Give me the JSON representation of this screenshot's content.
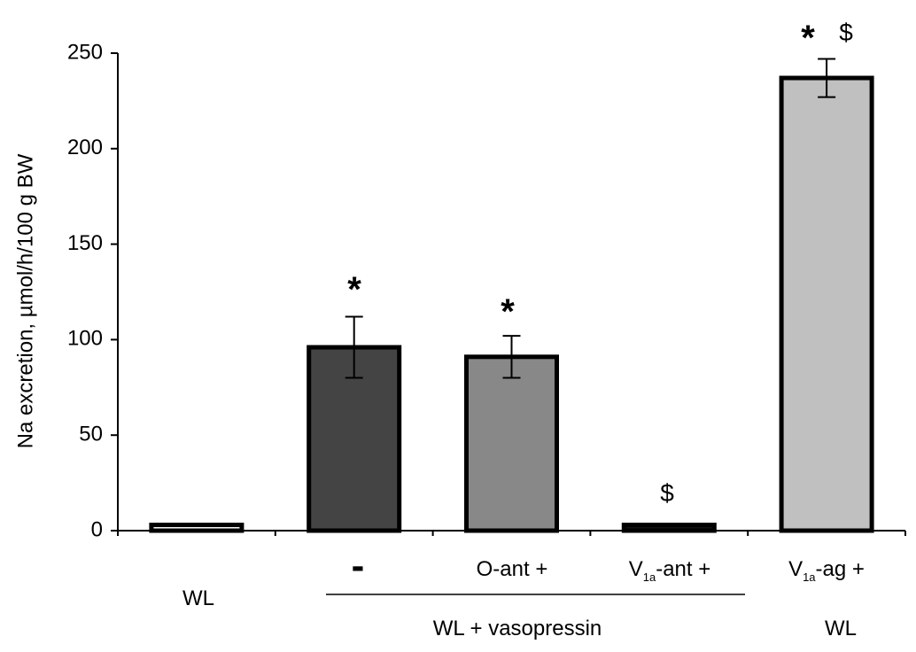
{
  "chart_data": {
    "type": "bar",
    "title": "",
    "xlabel": "",
    "ylabel": "Na excretion, µmol/h/100 g BW",
    "ylim": [
      0,
      250
    ],
    "yticks": [
      0,
      50,
      100,
      150,
      200,
      250
    ],
    "grid": false,
    "legend": "none",
    "bars": [
      {
        "category": "WL",
        "value": 3,
        "error": 0.5,
        "color": "#ffffff",
        "annotation": ""
      },
      {
        "category": "-",
        "value": 96,
        "error": 16,
        "color": "#444444",
        "annotation": "*"
      },
      {
        "category": "O-ant +",
        "value": 91,
        "error": 11,
        "color": "#888888",
        "annotation": "*"
      },
      {
        "category": "V1a-ant +",
        "value": 3,
        "error": 0.5,
        "color": "#111111",
        "annotation": "$"
      },
      {
        "category": "V1a-ag +",
        "value": 237,
        "error": 10,
        "color": "#c0c0c0",
        "annotation": "* $"
      }
    ],
    "category_labels": {
      "wl": "WL",
      "minus": "-",
      "oant": "O-ant +",
      "v1a_ant_v": "V",
      "v1a_ant_sub": "1a",
      "v1a_ant_rest": "-ant +",
      "v1a_ag_v": "V",
      "v1a_ag_sub": "1a",
      "v1a_ag_rest": "-ag +"
    },
    "group_labels": {
      "vasopressin": "WL + vasopressin",
      "wl_right": "WL"
    },
    "annotations": {
      "star": "*",
      "dollar": "$"
    }
  }
}
